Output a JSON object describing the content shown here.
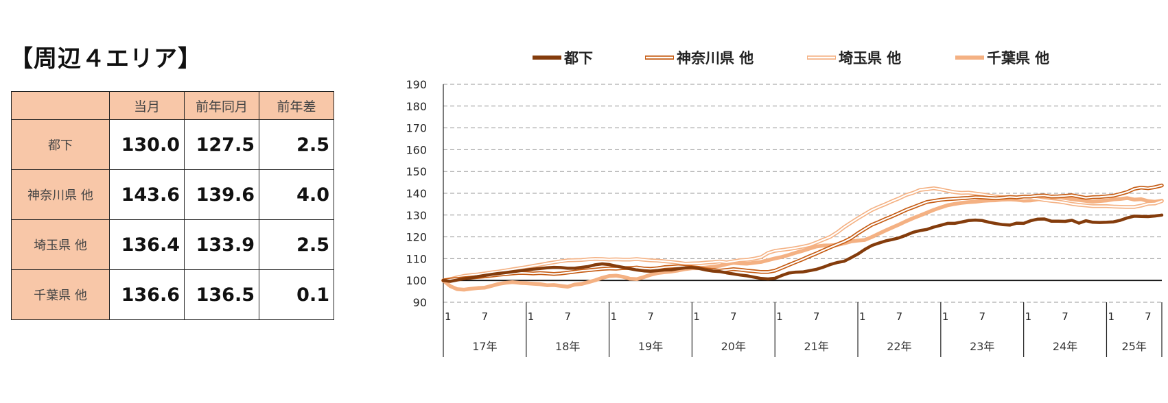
{
  "page_title": "【周辺４エリア】",
  "table": {
    "columns": [
      "",
      "当月",
      "前年同月",
      "前年差"
    ],
    "rows": [
      {
        "label": "都下",
        "values": [
          "130.0",
          "127.5",
          "2.5"
        ]
      },
      {
        "label": "神奈川県 他",
        "values": [
          "143.6",
          "139.6",
          "4.0"
        ]
      },
      {
        "label": "埼玉県 他",
        "values": [
          "136.4",
          "133.9",
          "2.5"
        ]
      },
      {
        "label": "千葉県 他",
        "values": [
          "136.6",
          "136.5",
          "0.1"
        ]
      }
    ]
  },
  "chart_data": {
    "type": "line",
    "title": "",
    "xlabel": "",
    "ylabel": "",
    "ylim": [
      90,
      190
    ],
    "yticks": [
      90,
      100,
      110,
      120,
      130,
      140,
      150,
      160,
      170,
      180,
      190
    ],
    "grid": true,
    "legend_position": "top",
    "baseline": 100,
    "x_start": "2017-01",
    "x_end": "2025-06",
    "month_ticks": [
      "1",
      "7"
    ],
    "years": [
      "17年",
      "18年",
      "19年",
      "20年",
      "21年",
      "22年",
      "23年",
      "24年",
      "25年"
    ],
    "series": [
      {
        "name": "都下",
        "color": "#843c0c",
        "style": "solid",
        "values": [
          100,
          99.6,
          100.2,
          100.8,
          101.2,
          101.8,
          102.3,
          102.8,
          103.2,
          103.6,
          104,
          104.4,
          104.8,
          105.2,
          105.5,
          105.8,
          106,
          105.9,
          105.6,
          105.6,
          106,
          106.4,
          107.2,
          107.6,
          107.3,
          106.6,
          106,
          105.4,
          104.8,
          104.4,
          104.2,
          104.5,
          104.8,
          104.9,
          105.4,
          105.8,
          105.9,
          105.5,
          104.8,
          104.3,
          104.1,
          103.5,
          103,
          102.5,
          102.1,
          101.5,
          100.9,
          100.7,
          101,
          102.3,
          103.4,
          103.8,
          103.9,
          104.5,
          105.1,
          106.1,
          107.3,
          108.2,
          108.8,
          110.4,
          112.1,
          114.2,
          116,
          117.1,
          118.1,
          118.8,
          119.6,
          120.8,
          122.1,
          122.9,
          123.4,
          124.5,
          125.3,
          126.2,
          126.2,
          126.8,
          127.5,
          127.7,
          127.5,
          126.7,
          126.1,
          125.6,
          125.4,
          126.3,
          126.2,
          127.4,
          128.1,
          128.2,
          127.2,
          127.2,
          127.1,
          127.6,
          126.3,
          127.4,
          126.7,
          126.6,
          126.7,
          126.9,
          127.6,
          128.7,
          129.5,
          129.4,
          129.3,
          129.6,
          130
        ]
      },
      {
        "name": "神奈川県 他",
        "color": "#c55a11",
        "style": "double",
        "values": [
          100,
          100.4,
          100.7,
          101,
          101.3,
          101.6,
          101.9,
          102.2,
          102.6,
          102.9,
          103.2,
          103.5,
          103.4,
          103.2,
          103.4,
          103.2,
          103,
          103.2,
          103.6,
          104,
          104.4,
          104.7,
          105,
          105.3,
          105.5,
          105.4,
          105.7,
          105.7,
          105.9,
          105.5,
          105.3,
          105.6,
          106.1,
          106.3,
          106.5,
          106.3,
          106.1,
          105.8,
          105.1,
          104.8,
          104.5,
          104.8,
          105.2,
          104.9,
          104.5,
          104.2,
          103.9,
          103.9,
          104.5,
          105.8,
          107.1,
          108.4,
          109.7,
          111.1,
          112.4,
          113.8,
          115.2,
          116.5,
          117.8,
          119.4,
          121.6,
          123.6,
          125.5,
          126.8,
          128.2,
          129.5,
          130.9,
          132.4,
          133.6,
          134.8,
          136,
          136.5,
          137,
          137.3,
          137.5,
          137.7,
          137.9,
          138.2,
          138.1,
          137.9,
          137.7,
          138,
          138.3,
          138.1,
          138.5,
          138.5,
          138.9,
          139,
          138.5,
          138.6,
          138.8,
          139.1,
          138.5,
          137.9,
          138.2,
          138.3,
          138.6,
          138.9,
          139.7,
          140.6,
          142,
          142.6,
          142.3,
          142.8,
          143.6
        ]
      },
      {
        "name": "埼玉県 他",
        "color": "#f4b183",
        "style": "double",
        "values": [
          100,
          100.6,
          101.4,
          102.1,
          102.5,
          102.8,
          103.2,
          103.7,
          104.1,
          104.6,
          105.1,
          105.6,
          106.1,
          106.7,
          107.2,
          107.8,
          108.3,
          108.8,
          109.2,
          109.3,
          109.4,
          109.7,
          109.9,
          109.8,
          109.6,
          109.7,
          109.6,
          109.6,
          109.8,
          109.5,
          109.2,
          109.1,
          108.8,
          108.5,
          108.1,
          107.7,
          107.8,
          107.9,
          108.2,
          108.4,
          108.7,
          108.3,
          108.8,
          109.3,
          109.5,
          110,
          110.7,
          112.6,
          113.6,
          114,
          114.4,
          114.9,
          115.5,
          116.2,
          117.4,
          118.7,
          120,
          122,
          124.4,
          126.5,
          128.5,
          130.4,
          132.3,
          133.7,
          135,
          136.4,
          137.7,
          139.2,
          140.2,
          141.5,
          141.9,
          142.3,
          141.8,
          141.1,
          140.5,
          140.2,
          140.3,
          139.9,
          139.5,
          139,
          138.5,
          138.2,
          137.9,
          137.6,
          137.5,
          137.7,
          137.4,
          136.9,
          136.5,
          136.2,
          135.7,
          135.1,
          134.7,
          134.4,
          134.1,
          134.1,
          134.1,
          133.9,
          133.8,
          133.7,
          133.7,
          134.3,
          135.2,
          135.3,
          136.4
        ]
      },
      {
        "name": "千葉県 他",
        "color": "#f4b183",
        "style": "thick",
        "values": [
          100,
          97.4,
          96,
          95.8,
          96.2,
          96.5,
          96.7,
          97.5,
          98.4,
          98.9,
          99.2,
          98.9,
          98.7,
          98.5,
          98.3,
          97.8,
          97.9,
          97.5,
          97.1,
          98.1,
          98.4,
          99.2,
          100.1,
          101.2,
          102,
          102.2,
          101.7,
          100.8,
          100.6,
          101.5,
          102.6,
          103.4,
          103.8,
          104.1,
          104.6,
          105.2,
          105.6,
          105.6,
          105.9,
          106.3,
          106.7,
          107.5,
          108.1,
          107.8,
          107.7,
          108.1,
          108.5,
          109.3,
          110.1,
          110.8,
          111.7,
          112.7,
          113.6,
          114.6,
          115.6,
          116,
          116.1,
          116.3,
          117,
          117.9,
          118.3,
          118.6,
          119.9,
          121.4,
          122.9,
          124.3,
          125.7,
          127.2,
          128.6,
          129.8,
          131.1,
          132.4,
          133.5,
          134.5,
          135.1,
          135.6,
          135.9,
          136.1,
          136.5,
          136.7,
          136.8,
          137.1,
          137.2,
          137,
          136.6,
          136.7,
          137.2,
          137.4,
          137.8,
          138.2,
          137.8,
          137.3,
          136.9,
          136.5,
          136.1,
          136.4,
          136.7,
          137.2,
          137.4,
          137.8,
          137.1,
          137.3,
          136.4,
          136.1,
          136.6
        ]
      }
    ]
  }
}
